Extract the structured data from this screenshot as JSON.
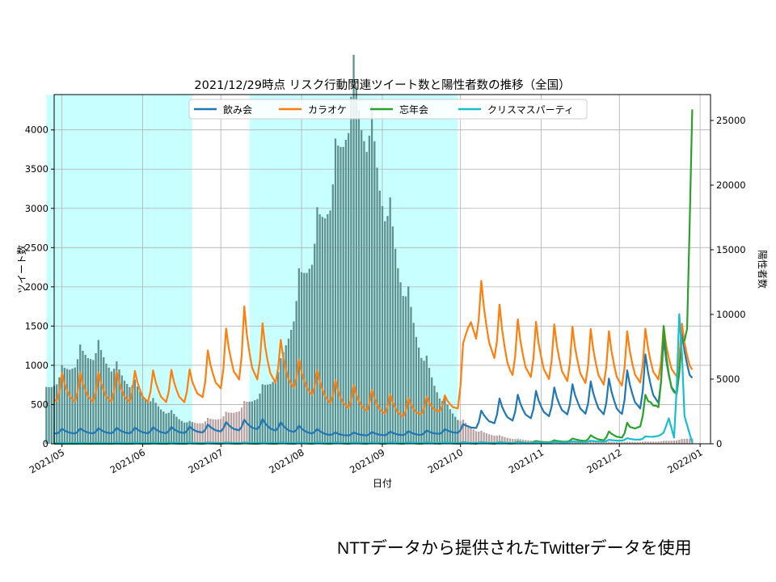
{
  "footer_note": "NTTデータから提供されたTwitterデータを使用",
  "chart_data": {
    "type": "line",
    "title": "2021/12/29時点 リスク行動関連ツイート数と陽性者数の推移（全国）",
    "xlabel": "日付",
    "ylabel": "ツイート数",
    "y2label": "陽性者数",
    "x_range": [
      "2021-04-28",
      "2022-01-05"
    ],
    "ylim": [
      0,
      4450
    ],
    "y2lim": [
      0,
      27000
    ],
    "x_ticks": [
      "2021/05",
      "2021/06",
      "2021/07",
      "2021/08",
      "2021/09",
      "2021/10",
      "2021/11",
      "2021/12",
      "2022/01"
    ],
    "x_tick_dates": [
      "2021-05-01",
      "2021-06-01",
      "2021-07-01",
      "2021-08-01",
      "2021-09-01",
      "2021-10-01",
      "2021-11-01",
      "2021-12-01",
      "2022-01-01"
    ],
    "y_ticks": [
      0,
      500,
      1000,
      1500,
      2000,
      2500,
      3000,
      3500,
      4000
    ],
    "y2_ticks": [
      0,
      5000,
      10000,
      15000,
      20000,
      25000
    ],
    "grid": true,
    "legend_position": "top-center",
    "shaded_periods": [
      {
        "start": "2021-04-25",
        "end": "2021-06-20",
        "color": "#c8ffff"
      },
      {
        "start": "2021-07-12",
        "end": "2021-09-30",
        "color": "#c8ffff"
      }
    ],
    "positives_bars": {
      "color": "#5f8f8f",
      "color_outside_shading": "#b7a1a1",
      "axis": "right",
      "anchors": [
        [
          "2021-04-25",
          4000
        ],
        [
          "2021-05-08",
          6500
        ],
        [
          "2021-05-15",
          6800
        ],
        [
          "2021-05-22",
          5400
        ],
        [
          "2021-05-29",
          4200
        ],
        [
          "2021-06-05",
          3000
        ],
        [
          "2021-06-12",
          2200
        ],
        [
          "2021-06-19",
          1500
        ],
        [
          "2021-06-26",
          1700
        ],
        [
          "2021-07-03",
          2100
        ],
        [
          "2021-07-10",
          2800
        ],
        [
          "2021-07-17",
          3900
        ],
        [
          "2021-07-24",
          5600
        ],
        [
          "2021-07-31",
          11500
        ],
        [
          "2021-08-07",
          15500
        ],
        [
          "2021-08-14",
          20000
        ],
        [
          "2021-08-20",
          25900
        ],
        [
          "2021-08-27",
          23000
        ],
        [
          "2021-09-03",
          17000
        ],
        [
          "2021-09-10",
          11000
        ],
        [
          "2021-09-17",
          6200
        ],
        [
          "2021-09-24",
          3200
        ],
        [
          "2021-10-01",
          1700
        ],
        [
          "2021-10-08",
          900
        ],
        [
          "2021-10-15",
          600
        ],
        [
          "2021-10-22",
          350
        ],
        [
          "2021-10-31",
          220
        ],
        [
          "2021-11-15",
          170
        ],
        [
          "2021-12-01",
          120
        ],
        [
          "2021-12-15",
          160
        ],
        [
          "2021-12-22",
          250
        ],
        [
          "2021-12-29",
          420
        ]
      ]
    },
    "series": [
      {
        "name": "飲み会",
        "color": "#1f77b4",
        "axis": "left",
        "base": [
          [
            "2021-04-28",
            140
          ],
          [
            "2021-06-20",
            150
          ],
          [
            "2021-07-15",
            210
          ],
          [
            "2021-08-15",
            110
          ],
          [
            "2021-09-15",
            120
          ],
          [
            "2021-09-30",
            150
          ],
          [
            "2021-10-15",
            320
          ],
          [
            "2021-11-01",
            400
          ],
          [
            "2021-11-15",
            450
          ],
          [
            "2021-12-01",
            450
          ],
          [
            "2021-12-20",
            700
          ],
          [
            "2021-12-29",
            900
          ]
        ],
        "amp": [
          [
            "2021-04-28",
            50
          ],
          [
            "2021-06-20",
            70
          ],
          [
            "2021-07-15",
            120
          ],
          [
            "2021-08-15",
            30
          ],
          [
            "2021-09-30",
            50
          ],
          [
            "2021-10-15",
            250
          ],
          [
            "2021-11-15",
            320
          ],
          [
            "2021-12-01",
            400
          ],
          [
            "2021-12-20",
            700
          ],
          [
            "2021-12-29",
            600
          ]
        ]
      },
      {
        "name": "カラオケ",
        "color": "#ff7f0e",
        "axis": "left",
        "base": [
          [
            "2021-04-28",
            600
          ],
          [
            "2021-06-20",
            600
          ],
          [
            "2021-07-10",
            1000
          ],
          [
            "2021-07-25",
            850
          ],
          [
            "2021-08-15",
            530
          ],
          [
            "2021-09-10",
            380
          ],
          [
            "2021-09-30",
            480
          ],
          [
            "2021-10-05",
            1550
          ],
          [
            "2021-10-20",
            1000
          ],
          [
            "2021-11-15",
            900
          ],
          [
            "2021-12-01",
            850
          ],
          [
            "2021-12-29",
            1000
          ]
        ],
        "amp": [
          [
            "2021-04-28",
            300
          ],
          [
            "2021-06-20",
            350
          ],
          [
            "2021-07-10",
            750
          ],
          [
            "2021-08-01",
            300
          ],
          [
            "2021-09-30",
            150
          ],
          [
            "2021-10-05",
            700
          ],
          [
            "2021-10-20",
            600
          ],
          [
            "2021-12-29",
            550
          ]
        ]
      },
      {
        "name": "忘年会",
        "color": "#2ca02c",
        "axis": "left",
        "base": [
          [
            "2021-04-28",
            0
          ],
          [
            "2021-10-20",
            5
          ],
          [
            "2021-11-10",
            30
          ],
          [
            "2021-11-25",
            60
          ],
          [
            "2021-12-05",
            120
          ],
          [
            "2021-12-12",
            380
          ],
          [
            "2021-12-18",
            700
          ],
          [
            "2021-12-22",
            720
          ],
          [
            "2021-12-25",
            820
          ],
          [
            "2021-12-27",
            1400
          ],
          [
            "2021-12-28",
            2800
          ],
          [
            "2021-12-29",
            4260
          ]
        ],
        "amp": [
          [
            "2021-04-28",
            0
          ],
          [
            "2021-11-10",
            20
          ],
          [
            "2021-12-01",
            100
          ],
          [
            "2021-12-12",
            300
          ],
          [
            "2021-12-18",
            800
          ],
          [
            "2021-12-25",
            500
          ],
          [
            "2021-12-29",
            0
          ]
        ]
      },
      {
        "name": "クリスマスパーティ",
        "color": "#17becf",
        "axis": "left",
        "base": [
          [
            "2021-04-28",
            10
          ],
          [
            "2021-11-01",
            12
          ],
          [
            "2021-11-25",
            30
          ],
          [
            "2021-12-10",
            60
          ],
          [
            "2021-12-18",
            120
          ],
          [
            "2021-12-20",
            320
          ],
          [
            "2021-12-22",
            80
          ],
          [
            "2021-12-23",
            700
          ],
          [
            "2021-12-24",
            1650
          ],
          [
            "2021-12-25",
            1150
          ],
          [
            "2021-12-26",
            350
          ],
          [
            "2021-12-29",
            15
          ]
        ],
        "amp": [
          [
            "2021-04-28",
            4
          ],
          [
            "2021-11-15",
            10
          ],
          [
            "2021-12-15",
            30
          ],
          [
            "2021-12-29",
            0
          ]
        ]
      }
    ]
  }
}
